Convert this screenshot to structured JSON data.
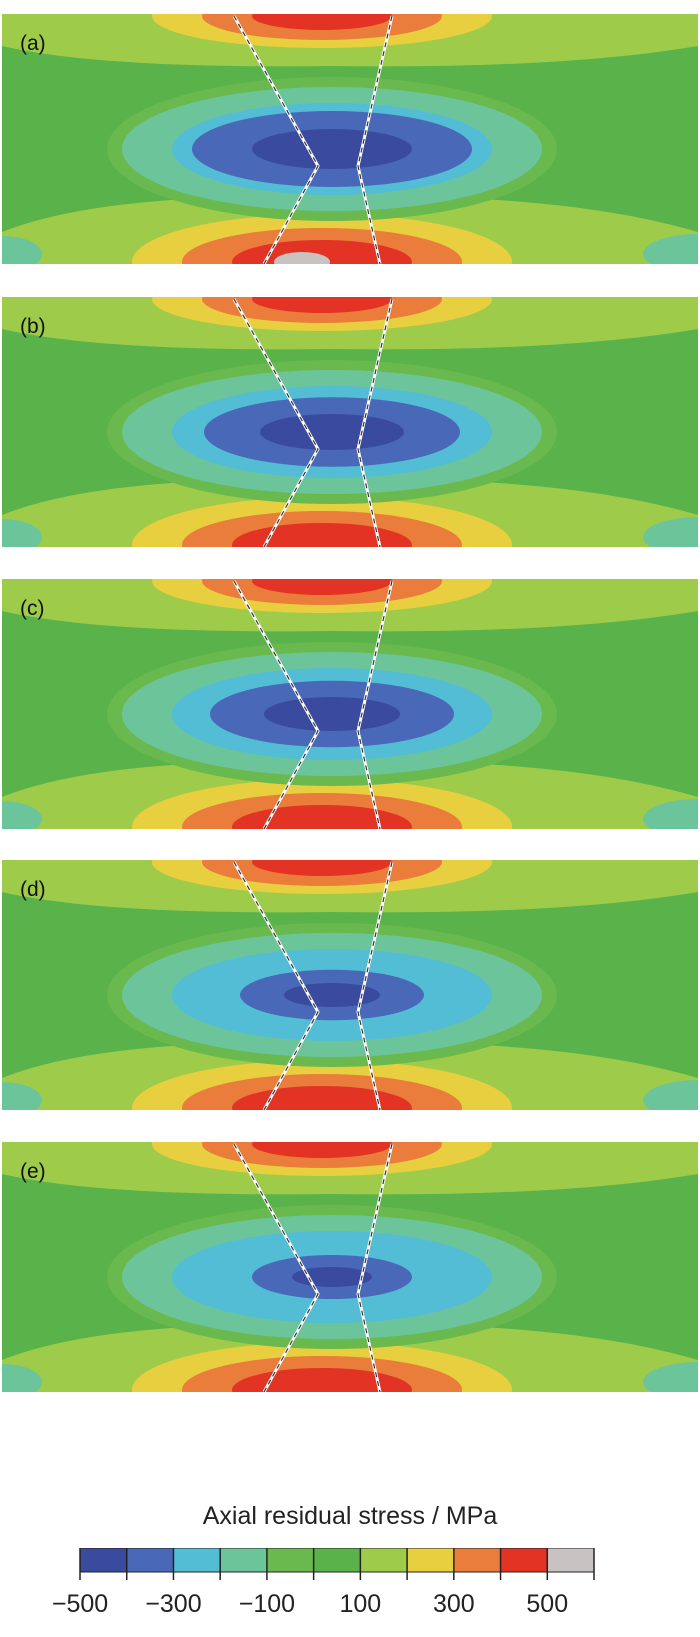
{
  "figure": {
    "panels": [
      {
        "label": "(a)",
        "peak_tension_mpa": 550,
        "compression_extent": 1.0
      },
      {
        "label": "(b)",
        "peak_tension_mpa": 500,
        "compression_extent": 0.9
      },
      {
        "label": "(c)",
        "peak_tension_mpa": 500,
        "compression_extent": 0.85
      },
      {
        "label": "(d)",
        "peak_tension_mpa": 500,
        "compression_extent": 0.6
      },
      {
        "label": "(e)",
        "peak_tension_mpa": 450,
        "compression_extent": 0.5
      }
    ]
  },
  "legend": {
    "title": "Axial residual stress / MPa",
    "colors": [
      "#3a4a9e",
      "#4a68b8",
      "#53bdd5",
      "#6cc59a",
      "#69b94f",
      "#59b34a",
      "#9ecc4a",
      "#e8cf3f",
      "#ea7d3b",
      "#e23325",
      "#c8c2c2"
    ],
    "bounds_mpa": [
      -500,
      -400,
      -300,
      -200,
      -100,
      0,
      100,
      200,
      300,
      400,
      500,
      600
    ],
    "tick_labels": [
      "−500",
      "−300",
      "−100",
      "100",
      "300",
      "500"
    ],
    "tick_values_mpa": [
      -500,
      -300,
      -100,
      100,
      300,
      500
    ]
  }
}
